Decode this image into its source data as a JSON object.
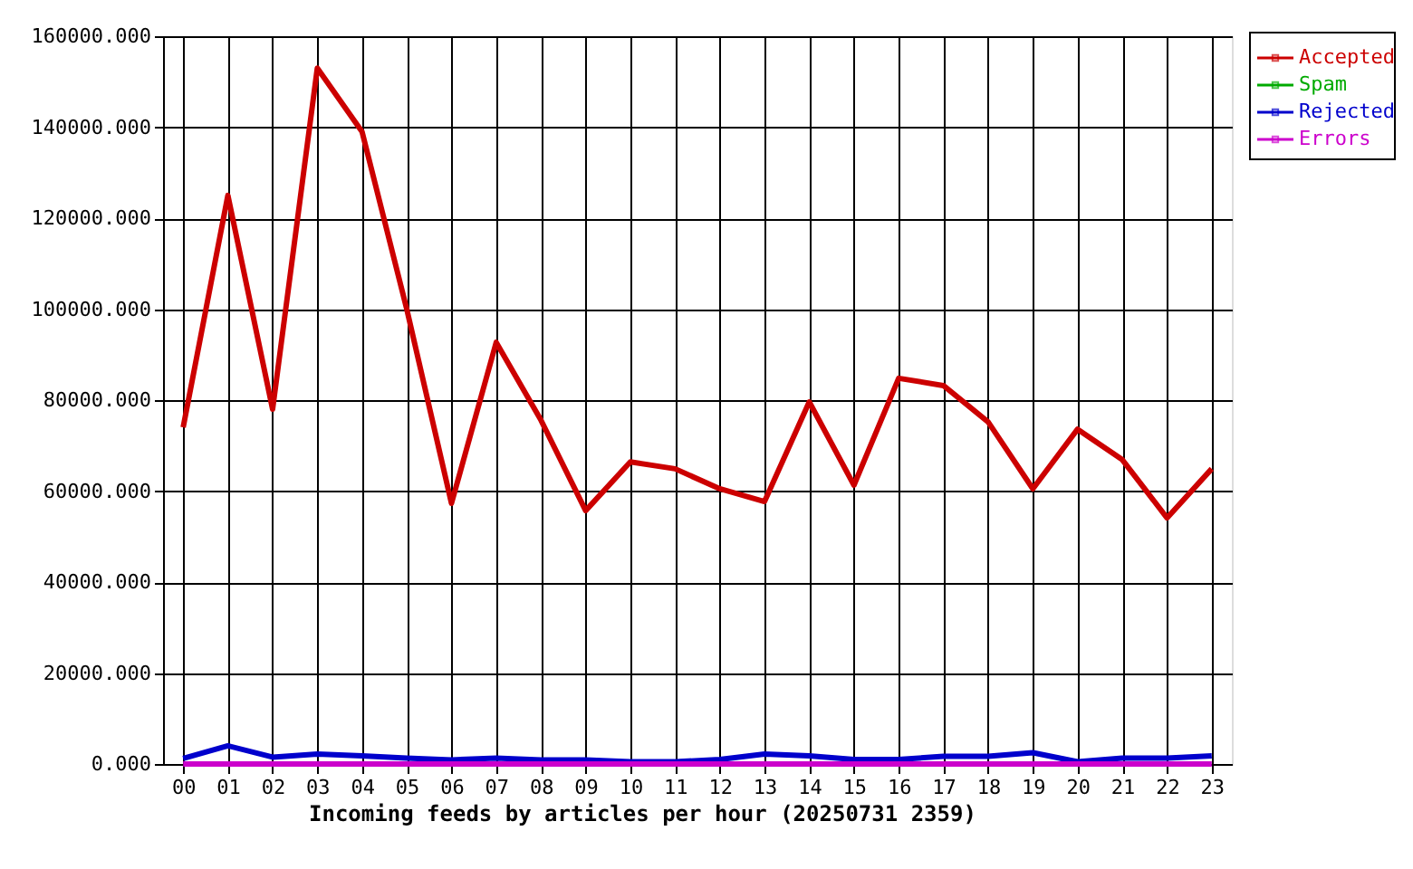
{
  "chart_data": {
    "type": "line",
    "xlabel": "Incoming feeds by articles per hour (20250731 2359)",
    "categories": [
      "00",
      "01",
      "02",
      "03",
      "04",
      "05",
      "06",
      "07",
      "08",
      "09",
      "10",
      "11",
      "12",
      "13",
      "14",
      "15",
      "16",
      "17",
      "18",
      "19",
      "20",
      "21",
      "22",
      "23"
    ],
    "series": [
      {
        "name": "Accepted",
        "color": "#cc0000",
        "values": [
          74000,
          125000,
          78000,
          153000,
          139000,
          100000,
          57300,
          92700,
          75600,
          55700,
          66400,
          64900,
          60500,
          57700,
          79600,
          61300,
          84800,
          83200,
          75200,
          60500,
          73600,
          66900,
          54100,
          64900
        ]
      },
      {
        "name": "Spam",
        "color": "#00aa00",
        "values": [
          null,
          null,
          null,
          null,
          null,
          null,
          null,
          null,
          null,
          null,
          null,
          null,
          null,
          null,
          null,
          null,
          null,
          null,
          null,
          null,
          null,
          null,
          null,
          null
        ]
      },
      {
        "name": "Rejected",
        "color": "#0000cc",
        "values": [
          1200,
          4000,
          1500,
          2200,
          1800,
          1300,
          900,
          1300,
          900,
          900,
          500,
          500,
          1000,
          2200,
          1800,
          1000,
          1000,
          1700,
          1700,
          2500,
          500,
          1300,
          1300,
          1800
        ]
      },
      {
        "name": "Errors",
        "color": "#cc00cc",
        "values": [
          0,
          0,
          0,
          0,
          0,
          0,
          0,
          0,
          0,
          0,
          0,
          0,
          0,
          0,
          0,
          0,
          0,
          0,
          0,
          0,
          0,
          0,
          0,
          0
        ]
      }
    ],
    "ylim": [
      0,
      160000
    ],
    "yticks": [
      {
        "value": 0,
        "label": "0.000"
      },
      {
        "value": 20000,
        "label": "20000.000"
      },
      {
        "value": 40000,
        "label": "40000.000"
      },
      {
        "value": 60000,
        "label": "60000.000"
      },
      {
        "value": 80000,
        "label": "80000.000"
      },
      {
        "value": 100000,
        "label": "100000.000"
      },
      {
        "value": 120000,
        "label": "120000.000"
      },
      {
        "value": 140000,
        "label": "140000.000"
      },
      {
        "value": 160000,
        "label": "160000.000"
      }
    ],
    "grid": true,
    "legend": "top right"
  }
}
